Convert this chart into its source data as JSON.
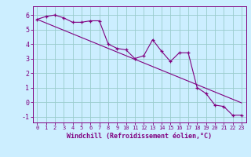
{
  "x": [
    0,
    1,
    2,
    3,
    4,
    5,
    6,
    7,
    8,
    9,
    10,
    11,
    12,
    13,
    14,
    15,
    16,
    17,
    18,
    19,
    20,
    21,
    22,
    23
  ],
  "y_data": [
    5.7,
    5.9,
    6.0,
    5.8,
    5.5,
    5.5,
    5.6,
    5.6,
    4.0,
    3.7,
    3.6,
    3.0,
    3.2,
    4.3,
    3.5,
    2.8,
    3.4,
    3.4,
    1.0,
    0.6,
    -0.2,
    -0.3,
    -0.9,
    -0.9
  ],
  "y_trend": [
    5.7,
    5.45,
    5.2,
    4.95,
    4.7,
    4.45,
    4.2,
    3.95,
    3.7,
    3.45,
    3.2,
    2.95,
    2.7,
    2.45,
    2.2,
    1.95,
    1.7,
    1.45,
    1.2,
    0.95,
    0.7,
    0.45,
    0.2,
    -0.05
  ],
  "line_color": "#800080",
  "background_color": "#cceeff",
  "grid_color": "#99cccc",
  "xlabel": "Windchill (Refroidissement éolien,°C)",
  "xlim": [
    -0.5,
    23.5
  ],
  "ylim": [
    -1.4,
    6.6
  ],
  "yticks": [
    -1,
    0,
    1,
    2,
    3,
    4,
    5,
    6
  ],
  "xticks": [
    0,
    1,
    2,
    3,
    4,
    5,
    6,
    7,
    8,
    9,
    10,
    11,
    12,
    13,
    14,
    15,
    16,
    17,
    18,
    19,
    20,
    21,
    22,
    23
  ]
}
